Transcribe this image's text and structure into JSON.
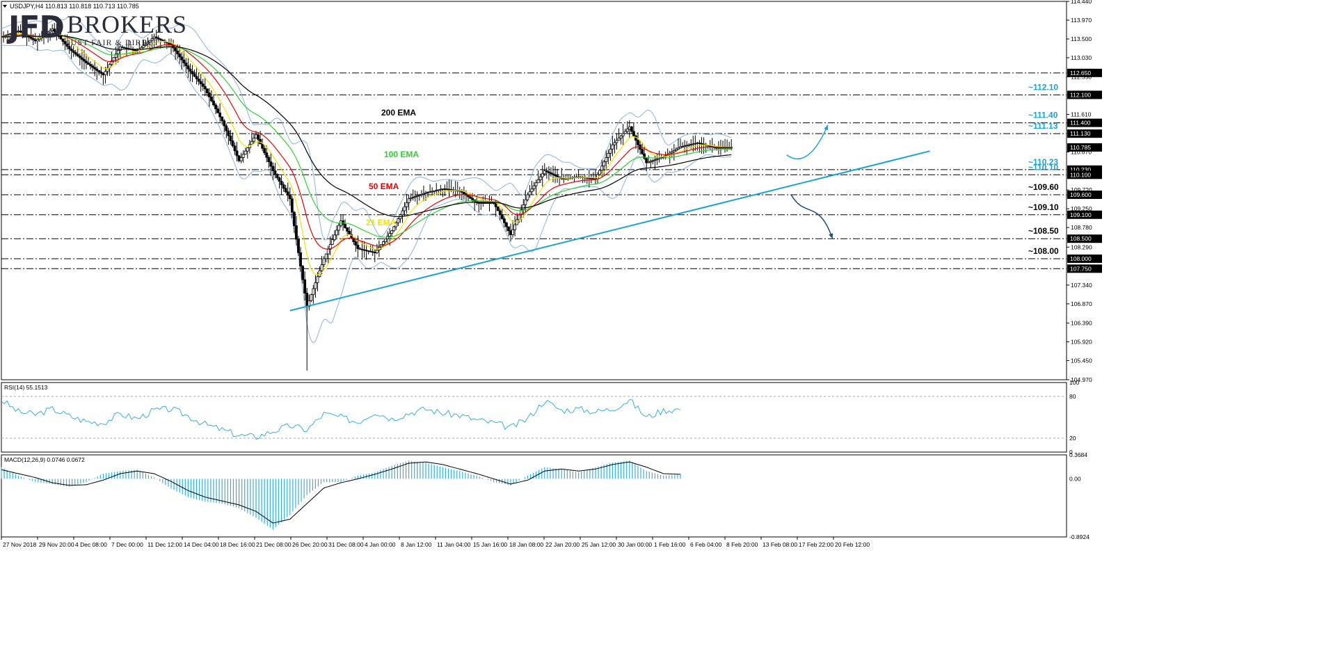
{
  "header": {
    "symbol_line": "USDJPY,H4  110.813 110.818 110.713 110.785"
  },
  "logo": {
    "mark": "JFD",
    "name": "BROKERS",
    "tagline": "JUST FAIR & DIRECT"
  },
  "colors": {
    "candle": "#000000",
    "ema21": "#f2e100",
    "ema50": "#e60000",
    "ema100": "#33cc33",
    "ema200": "#000000",
    "bollinger": "#87b4e0",
    "trendline": "#1aa1d6",
    "label_blue": "#1aa1d6",
    "rsi": "#3aaed8",
    "macd_hist": "#3aaed8",
    "macd_signal": "#000000",
    "current_price_box": "#000000"
  },
  "chart_data": [
    {
      "type": "candlestick",
      "name": "price",
      "symbol": "USDJPY",
      "timeframe": "H4",
      "ohlc_last": {
        "open": 110.813,
        "high": 110.818,
        "low": 110.713,
        "close": 110.785
      },
      "ylim": [
        104.97,
        114.44
      ],
      "yticks": [
        {
          "v": 114.44,
          "label": "114.440"
        },
        {
          "v": 113.97,
          "label": "113.970"
        },
        {
          "v": 113.5,
          "label": "113.500"
        },
        {
          "v": 113.03,
          "label": "113.030"
        },
        {
          "v": 112.55,
          "label": "112.550"
        },
        {
          "v": 111.61,
          "label": "111.610"
        },
        {
          "v": 110.67,
          "label": "110.670"
        },
        {
          "v": 109.72,
          "label": "109.720"
        },
        {
          "v": 109.25,
          "label": "109.250"
        },
        {
          "v": 108.78,
          "label": "108.780"
        },
        {
          "v": 108.29,
          "label": "108.290"
        },
        {
          "v": 107.34,
          "label": "107.340"
        },
        {
          "v": 106.87,
          "label": "106.870"
        },
        {
          "v": 106.39,
          "label": "106.390"
        },
        {
          "v": 105.92,
          "label": "105.920"
        },
        {
          "v": 105.45,
          "label": "105.450"
        },
        {
          "v": 104.97,
          "label": "104.970"
        }
      ],
      "levels": [
        {
          "v": 112.65,
          "box": "112.650",
          "label": ""
        },
        {
          "v": 112.1,
          "box": "112.100",
          "label": "~112.10",
          "style": "blue"
        },
        {
          "v": 111.4,
          "box": "111.400",
          "label": "~111.40",
          "style": "blue"
        },
        {
          "v": 111.13,
          "box": "111.130",
          "label": "~111.13",
          "style": "blue"
        },
        {
          "v": 110.23,
          "box": "110.230",
          "label": "~110.23",
          "style": "blue"
        },
        {
          "v": 110.1,
          "box": "110.100",
          "label": "~110.10",
          "style": "blue"
        },
        {
          "v": 109.6,
          "box": "109.600",
          "label": "~109.60",
          "style": "black"
        },
        {
          "v": 109.1,
          "box": "109.100",
          "label": "~109.10",
          "style": "black"
        },
        {
          "v": 108.5,
          "box": "108.500",
          "label": "~108.50",
          "style": "black"
        },
        {
          "v": 108.0,
          "box": "108.000",
          "label": "~108.00",
          "style": "black"
        },
        {
          "v": 107.75,
          "box": "107.750",
          "label": ""
        }
      ],
      "current_price": {
        "v": 110.785,
        "label": "110.785"
      },
      "x_labels": [
        "27 Nov 2018",
        "29 Nov 20:00",
        "4 Dec 08:00",
        "7 Dec 00:00",
        "11 Dec 12:00",
        "14 Dec 04:00",
        "18 Dec 16:00",
        "21 Dec 08:00",
        "26 Dec 20:00",
        "31 Dec 08:00",
        "4 Jan 00:00",
        "8 Jan 12:00",
        "11 Jan 04:00",
        "15 Jan 16:00",
        "18 Jan 08:00",
        "22 Jan 20:00",
        "25 Jan 12:00",
        "30 Jan 00:00",
        "1 Feb 16:00",
        "6 Feb 04:00",
        "8 Feb 20:00",
        "13 Feb 08:00",
        "17 Feb 22:00",
        "20 Feb 12:00"
      ],
      "indicator_labels": [
        {
          "text": "200 EMA",
          "color": "#000000"
        },
        {
          "text": "100 EMA",
          "color": "#33cc33"
        },
        {
          "text": "50 EMA",
          "color": "#e60000"
        },
        {
          "text": "21 EMA",
          "color": "#f2e100"
        }
      ],
      "bars": [
        0.0,
        0.02,
        0.04,
        0.06,
        0.08,
        0.1,
        0.12,
        0.14,
        0.16,
        0.18,
        0.2,
        0.22,
        0.24,
        0.26,
        0.28,
        0.3,
        0.32,
        0.34,
        0.36,
        0.38,
        0.4,
        0.42,
        0.44,
        0.46,
        0.48,
        0.5,
        0.52,
        0.54,
        0.56,
        0.58,
        0.6,
        0.62,
        0.64,
        0.66,
        0.68,
        0.7,
        0.72,
        0.74,
        0.76,
        0.78,
        0.8,
        0.82,
        0.84,
        0.86,
        0.88,
        0.9,
        0.92,
        0.94,
        0.96,
        0.98,
        1.0
      ],
      "price_path": [
        [
          0.0,
          113.55
        ],
        [
          0.02,
          113.7
        ],
        [
          0.04,
          113.45
        ],
        [
          0.06,
          113.75
        ],
        [
          0.08,
          113.25
        ],
        [
          0.1,
          112.9
        ],
        [
          0.12,
          112.6
        ],
        [
          0.14,
          113.3
        ],
        [
          0.16,
          113.2
        ],
        [
          0.18,
          113.55
        ],
        [
          0.2,
          113.35
        ],
        [
          0.22,
          112.75
        ],
        [
          0.24,
          112.25
        ],
        [
          0.26,
          111.45
        ],
        [
          0.28,
          110.45
        ],
        [
          0.3,
          111.1
        ],
        [
          0.32,
          110.2
        ],
        [
          0.34,
          109.5
        ],
        [
          0.36,
          106.8
        ],
        [
          0.38,
          108.0
        ],
        [
          0.4,
          108.95
        ],
        [
          0.42,
          108.25
        ],
        [
          0.44,
          108.15
        ],
        [
          0.46,
          108.7
        ],
        [
          0.48,
          109.5
        ],
        [
          0.5,
          109.65
        ],
        [
          0.52,
          109.75
        ],
        [
          0.54,
          109.7
        ],
        [
          0.56,
          109.4
        ],
        [
          0.58,
          109.4
        ],
        [
          0.6,
          108.6
        ],
        [
          0.62,
          109.6
        ],
        [
          0.64,
          110.2
        ],
        [
          0.66,
          110.0
        ],
        [
          0.68,
          110.05
        ],
        [
          0.7,
          110.0
        ],
        [
          0.72,
          110.85
        ],
        [
          0.74,
          111.3
        ],
        [
          0.76,
          110.4
        ],
        [
          0.78,
          110.55
        ],
        [
          0.8,
          110.8
        ],
        [
          0.82,
          110.9
        ],
        [
          0.84,
          110.78
        ],
        [
          0.86,
          110.785
        ]
      ],
      "trendline": [
        [
          0.34,
          106.7
        ],
        [
          0.93,
          110.45
        ]
      ],
      "scenario_up": [
        [
          0.855,
          110.6
        ],
        [
          0.87,
          110.35
        ],
        [
          0.885,
          110.55
        ],
        [
          0.9,
          111.35
        ]
      ],
      "scenario_down": [
        [
          0.86,
          109.6
        ],
        [
          0.875,
          109.0
        ],
        [
          0.89,
          109.5
        ],
        [
          0.905,
          108.5
        ]
      ]
    },
    {
      "type": "line",
      "name": "RSI(14)",
      "header": "RSI(14) 55.1513",
      "value": 55.1513,
      "ylim": [
        0,
        100
      ],
      "yticks": [
        {
          "v": 100,
          "label": "100"
        },
        {
          "v": 80,
          "label": "80"
        },
        {
          "v": 20,
          "label": "20"
        },
        {
          "v": 0,
          "label": "0"
        }
      ],
      "levels": [
        80,
        20
      ],
      "x": [
        0.0,
        0.02,
        0.04,
        0.06,
        0.08,
        0.1,
        0.12,
        0.14,
        0.16,
        0.18,
        0.2,
        0.22,
        0.24,
        0.26,
        0.28,
        0.3,
        0.32,
        0.34,
        0.36,
        0.38,
        0.4,
        0.42,
        0.44,
        0.46,
        0.48,
        0.5,
        0.52,
        0.54,
        0.56,
        0.58,
        0.6,
        0.62,
        0.64,
        0.66,
        0.68,
        0.7,
        0.72,
        0.74,
        0.76,
        0.78,
        0.8
      ],
      "values": [
        75,
        58,
        54,
        62,
        52,
        44,
        42,
        55,
        48,
        60,
        62,
        52,
        40,
        32,
        24,
        22,
        30,
        38,
        32,
        55,
        50,
        43,
        58,
        48,
        56,
        62,
        56,
        53,
        46,
        42,
        35,
        48,
        74,
        60,
        62,
        58,
        62,
        75,
        50,
        60,
        62
      ]
    },
    {
      "type": "bar",
      "name": "MACD(12,26,9)",
      "header": "MACD(12,26,9) 0.0746 0.0672",
      "macd": 0.0746,
      "signal": 0.0672,
      "ylim": [
        -0.8924,
        0.3684
      ],
      "yticks": [
        {
          "v": 0.3684,
          "label": "0.3684"
        },
        {
          "v": 0.0,
          "label": "0.00"
        },
        {
          "v": -0.8924,
          "label": "-0.8924"
        }
      ],
      "x": [
        0.0,
        0.02,
        0.04,
        0.06,
        0.08,
        0.1,
        0.12,
        0.14,
        0.16,
        0.18,
        0.2,
        0.22,
        0.24,
        0.26,
        0.28,
        0.3,
        0.32,
        0.34,
        0.36,
        0.38,
        0.4,
        0.42,
        0.44,
        0.46,
        0.48,
        0.5,
        0.52,
        0.54,
        0.56,
        0.58,
        0.6,
        0.62,
        0.64,
        0.66,
        0.68,
        0.7,
        0.72,
        0.74,
        0.76,
        0.78,
        0.8
      ],
      "hist": [
        0.18,
        0.05,
        -0.05,
        -0.08,
        -0.12,
        -0.05,
        0.08,
        0.12,
        0.14,
        0.02,
        -0.15,
        -0.28,
        -0.35,
        -0.38,
        -0.45,
        -0.6,
        -0.78,
        -0.55,
        -0.25,
        -0.05,
        -0.05,
        0.05,
        0.1,
        0.2,
        0.28,
        0.25,
        0.18,
        0.12,
        0.05,
        -0.05,
        -0.1,
        0.05,
        0.18,
        0.15,
        0.1,
        0.18,
        0.25,
        0.28,
        0.12,
        0.05,
        0.07
      ],
      "signal_line": [
        0.14,
        0.08,
        0.02,
        -0.06,
        -0.1,
        -0.09,
        -0.02,
        0.08,
        0.12,
        0.08,
        -0.04,
        -0.18,
        -0.28,
        -0.34,
        -0.4,
        -0.5,
        -0.68,
        -0.62,
        -0.38,
        -0.14,
        -0.06,
        0.0,
        0.07,
        0.15,
        0.24,
        0.26,
        0.22,
        0.15,
        0.08,
        0.0,
        -0.08,
        -0.02,
        0.12,
        0.15,
        0.12,
        0.15,
        0.22,
        0.26,
        0.18,
        0.08,
        0.07
      ]
    }
  ]
}
